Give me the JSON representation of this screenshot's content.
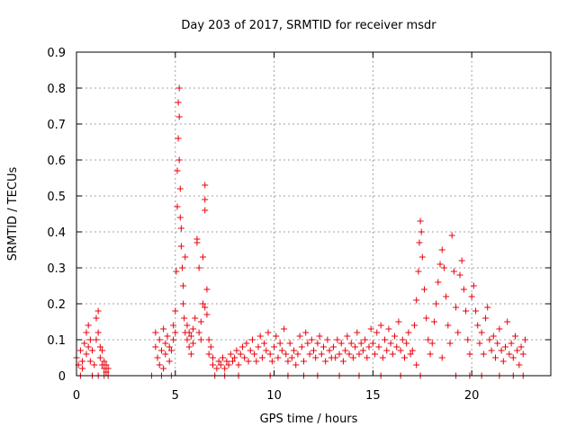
{
  "chart_data": {
    "type": "scatter",
    "title": "Day 203 of 2017, SRMTID for receiver msdr",
    "xlabel": "GPS time / hours",
    "ylabel": "SRMTID / TECUs",
    "xlim": [
      0,
      24
    ],
    "ylim": [
      0,
      0.9
    ],
    "x_ticks": [
      0,
      5,
      10,
      15,
      20
    ],
    "x_tick_labels": [
      "0",
      "5",
      "10",
      "15",
      "20"
    ],
    "y_ticks": [
      0,
      0.1,
      0.2,
      0.3,
      0.4,
      0.5,
      0.6,
      0.7,
      0.8,
      0.9
    ],
    "y_tick_labels": [
      "0",
      "0.1",
      "0.2",
      "0.3",
      "0.4",
      "0.5",
      "0.6",
      "0.7",
      "0.8",
      "0.9"
    ],
    "grid": true,
    "marker": "+",
    "color": "#e8000b",
    "series": [
      {
        "name": "SRMTID",
        "points": [
          [
            0.0,
            0.05
          ],
          [
            0.1,
            0.03
          ],
          [
            0.2,
            0.07
          ],
          [
            0.3,
            0.04
          ],
          [
            0.4,
            0.09
          ],
          [
            0.5,
            0.06
          ],
          [
            0.5,
            0.12
          ],
          [
            0.6,
            0.08
          ],
          [
            0.6,
            0.14
          ],
          [
            0.7,
            0.1
          ],
          [
            0.7,
            0.04
          ],
          [
            0.8,
            0.07
          ],
          [
            0.3,
            0.02
          ],
          [
            0.2,
            0.0
          ],
          [
            0.8,
            0.0
          ],
          [
            0.9,
            0.03
          ],
          [
            1.0,
            0.1
          ],
          [
            1.0,
            0.16
          ],
          [
            1.1,
            0.18
          ],
          [
            1.1,
            0.12
          ],
          [
            1.2,
            0.08
          ],
          [
            1.2,
            0.05
          ],
          [
            1.3,
            0.03
          ],
          [
            1.3,
            0.07
          ],
          [
            1.4,
            0.02
          ],
          [
            1.4,
            0.04
          ],
          [
            1.5,
            0.01
          ],
          [
            1.5,
            0.03
          ],
          [
            1.6,
            0.02
          ],
          [
            1.1,
            0.0
          ],
          [
            1.4,
            0.0
          ],
          [
            1.6,
            0.0
          ],
          [
            3.8,
            0.0
          ],
          [
            4.0,
            0.08
          ],
          [
            4.0,
            0.12
          ],
          [
            4.1,
            0.05
          ],
          [
            4.2,
            0.1
          ],
          [
            4.2,
            0.03
          ],
          [
            4.3,
            0.07
          ],
          [
            4.4,
            0.13
          ],
          [
            4.4,
            0.02
          ],
          [
            4.5,
            0.06
          ],
          [
            4.5,
            0.09
          ],
          [
            4.6,
            0.11
          ],
          [
            4.7,
            0.04
          ],
          [
            4.7,
            0.08
          ],
          [
            4.8,
            0.07
          ],
          [
            4.9,
            0.14
          ],
          [
            4.9,
            0.1
          ],
          [
            4.8,
            0.0
          ],
          [
            4.3,
            0.0
          ],
          [
            5.0,
            0.12
          ],
          [
            5.0,
            0.18
          ],
          [
            5.05,
            0.29
          ],
          [
            5.1,
            0.47
          ],
          [
            5.1,
            0.57
          ],
          [
            5.15,
            0.66
          ],
          [
            5.15,
            0.76
          ],
          [
            5.2,
            0.8
          ],
          [
            5.2,
            0.72
          ],
          [
            5.2,
            0.6
          ],
          [
            5.25,
            0.52
          ],
          [
            5.25,
            0.44
          ],
          [
            5.3,
            0.41
          ],
          [
            5.3,
            0.36
          ],
          [
            5.35,
            0.3
          ],
          [
            5.4,
            0.25
          ],
          [
            5.4,
            0.2
          ],
          [
            5.45,
            0.16
          ],
          [
            5.5,
            0.12
          ],
          [
            5.5,
            0.33
          ],
          [
            5.6,
            0.1
          ],
          [
            5.6,
            0.14
          ],
          [
            5.7,
            0.08
          ],
          [
            5.7,
            0.12
          ],
          [
            5.8,
            0.11
          ],
          [
            5.8,
            0.06
          ],
          [
            5.9,
            0.13
          ],
          [
            5.9,
            0.09
          ],
          [
            6.0,
            0.16
          ],
          [
            6.1,
            0.38
          ],
          [
            6.1,
            0.37
          ],
          [
            6.2,
            0.3
          ],
          [
            6.2,
            0.12
          ],
          [
            6.3,
            0.1
          ],
          [
            6.3,
            0.15
          ],
          [
            6.4,
            0.33
          ],
          [
            6.4,
            0.2
          ],
          [
            6.5,
            0.19
          ],
          [
            6.5,
            0.53
          ],
          [
            6.5,
            0.49
          ],
          [
            6.5,
            0.46
          ],
          [
            6.6,
            0.24
          ],
          [
            6.6,
            0.17
          ],
          [
            6.7,
            0.1
          ],
          [
            6.7,
            0.06
          ],
          [
            6.8,
            0.08
          ],
          [
            6.9,
            0.05
          ],
          [
            6.9,
            0.03
          ],
          [
            7.0,
            0.0
          ],
          [
            7.1,
            0.02
          ],
          [
            7.2,
            0.04
          ],
          [
            7.3,
            0.03
          ],
          [
            7.4,
            0.05
          ],
          [
            7.5,
            0.02
          ],
          [
            7.6,
            0.04
          ],
          [
            7.7,
            0.03
          ],
          [
            7.8,
            0.06
          ],
          [
            7.9,
            0.04
          ],
          [
            8.0,
            0.05
          ],
          [
            8.1,
            0.07
          ],
          [
            8.2,
            0.03
          ],
          [
            8.3,
            0.06
          ],
          [
            8.4,
            0.08
          ],
          [
            8.5,
            0.05
          ],
          [
            8.6,
            0.09
          ],
          [
            8.7,
            0.04
          ],
          [
            8.8,
            0.07
          ],
          [
            8.9,
            0.1
          ],
          [
            7.5,
            0.0
          ],
          [
            8.2,
            0.0
          ],
          [
            9.0,
            0.06
          ],
          [
            9.1,
            0.04
          ],
          [
            9.2,
            0.08
          ],
          [
            9.3,
            0.11
          ],
          [
            9.4,
            0.05
          ],
          [
            9.5,
            0.09
          ],
          [
            9.6,
            0.07
          ],
          [
            9.7,
            0.12
          ],
          [
            9.8,
            0.06
          ],
          [
            9.9,
            0.04
          ],
          [
            10.0,
            0.08
          ],
          [
            10.1,
            0.11
          ],
          [
            10.2,
            0.05
          ],
          [
            10.3,
            0.09
          ],
          [
            10.4,
            0.07
          ],
          [
            10.5,
            0.13
          ],
          [
            10.6,
            0.06
          ],
          [
            10.7,
            0.04
          ],
          [
            10.8,
            0.09
          ],
          [
            10.9,
            0.05
          ],
          [
            9.8,
            0.0
          ],
          [
            10.7,
            0.0
          ],
          [
            11.0,
            0.07
          ],
          [
            11.1,
            0.03
          ],
          [
            11.2,
            0.06
          ],
          [
            11.3,
            0.11
          ],
          [
            11.4,
            0.08
          ],
          [
            11.5,
            0.04
          ],
          [
            11.6,
            0.12
          ],
          [
            11.7,
            0.09
          ],
          [
            11.8,
            0.06
          ],
          [
            11.9,
            0.1
          ],
          [
            12.0,
            0.07
          ],
          [
            12.1,
            0.05
          ],
          [
            12.2,
            0.09
          ],
          [
            12.3,
            0.11
          ],
          [
            12.4,
            0.06
          ],
          [
            12.5,
            0.08
          ],
          [
            12.6,
            0.04
          ],
          [
            12.7,
            0.1
          ],
          [
            12.8,
            0.07
          ],
          [
            12.9,
            0.05
          ],
          [
            11.5,
            0.0
          ],
          [
            12.2,
            0.0
          ],
          [
            13.0,
            0.08
          ],
          [
            13.1,
            0.05
          ],
          [
            13.2,
            0.1
          ],
          [
            13.3,
            0.06
          ],
          [
            13.4,
            0.09
          ],
          [
            13.5,
            0.04
          ],
          [
            13.6,
            0.07
          ],
          [
            13.7,
            0.11
          ],
          [
            13.8,
            0.06
          ],
          [
            13.9,
            0.09
          ],
          [
            14.0,
            0.05
          ],
          [
            14.1,
            0.08
          ],
          [
            14.2,
            0.12
          ],
          [
            14.3,
            0.06
          ],
          [
            14.4,
            0.09
          ],
          [
            14.5,
            0.07
          ],
          [
            14.6,
            0.1
          ],
          [
            14.7,
            0.05
          ],
          [
            14.8,
            0.08
          ],
          [
            14.9,
            0.13
          ],
          [
            13.3,
            0.0
          ],
          [
            14.3,
            0.0
          ],
          [
            15.0,
            0.09
          ],
          [
            15.1,
            0.06
          ],
          [
            15.2,
            0.12
          ],
          [
            15.3,
            0.08
          ],
          [
            15.4,
            0.14
          ],
          [
            15.5,
            0.05
          ],
          [
            15.6,
            0.1
          ],
          [
            15.7,
            0.07
          ],
          [
            15.8,
            0.13
          ],
          [
            15.9,
            0.09
          ],
          [
            16.0,
            0.06
          ],
          [
            16.1,
            0.11
          ],
          [
            16.2,
            0.08
          ],
          [
            16.3,
            0.15
          ],
          [
            16.4,
            0.07
          ],
          [
            16.5,
            0.1
          ],
          [
            16.6,
            0.05
          ],
          [
            16.7,
            0.09
          ],
          [
            16.8,
            0.12
          ],
          [
            16.9,
            0.06
          ],
          [
            15.4,
            0.0
          ],
          [
            16.4,
            0.0
          ],
          [
            17.0,
            0.07
          ],
          [
            17.1,
            0.14
          ],
          [
            17.2,
            0.21
          ],
          [
            17.3,
            0.29
          ],
          [
            17.35,
            0.37
          ],
          [
            17.4,
            0.43
          ],
          [
            17.45,
            0.4
          ],
          [
            17.5,
            0.33
          ],
          [
            17.6,
            0.24
          ],
          [
            17.7,
            0.16
          ],
          [
            17.8,
            0.1
          ],
          [
            17.9,
            0.06
          ],
          [
            17.2,
            0.03
          ],
          [
            17.4,
            0.0
          ],
          [
            18.0,
            0.09
          ],
          [
            18.1,
            0.15
          ],
          [
            18.2,
            0.2
          ],
          [
            18.3,
            0.26
          ],
          [
            18.4,
            0.31
          ],
          [
            18.5,
            0.35
          ],
          [
            18.6,
            0.3
          ],
          [
            18.7,
            0.22
          ],
          [
            18.8,
            0.14
          ],
          [
            18.9,
            0.09
          ],
          [
            19.0,
            0.39
          ],
          [
            19.1,
            0.29
          ],
          [
            19.2,
            0.19
          ],
          [
            19.3,
            0.12
          ],
          [
            19.4,
            0.28
          ],
          [
            19.5,
            0.32
          ],
          [
            19.6,
            0.24
          ],
          [
            19.7,
            0.18
          ],
          [
            19.8,
            0.1
          ],
          [
            19.9,
            0.06
          ],
          [
            18.5,
            0.05
          ],
          [
            19.2,
            0.0
          ],
          [
            19.9,
            0.0
          ],
          [
            20.0,
            0.22
          ],
          [
            20.1,
            0.25
          ],
          [
            20.2,
            0.18
          ],
          [
            20.3,
            0.14
          ],
          [
            20.4,
            0.09
          ],
          [
            20.5,
            0.12
          ],
          [
            20.6,
            0.06
          ],
          [
            20.7,
            0.16
          ],
          [
            20.8,
            0.19
          ],
          [
            20.9,
            0.1
          ],
          [
            21.0,
            0.07
          ],
          [
            21.1,
            0.11
          ],
          [
            21.2,
            0.05
          ],
          [
            21.3,
            0.09
          ],
          [
            21.4,
            0.13
          ],
          [
            21.5,
            0.07
          ],
          [
            21.6,
            0.04
          ],
          [
            21.7,
            0.08
          ],
          [
            21.8,
            0.15
          ],
          [
            21.9,
            0.06
          ],
          [
            20.5,
            0.0
          ],
          [
            21.4,
            0.0
          ],
          [
            22.0,
            0.09
          ],
          [
            22.1,
            0.05
          ],
          [
            22.2,
            0.11
          ],
          [
            22.3,
            0.07
          ],
          [
            22.4,
            0.03
          ],
          [
            22.5,
            0.08
          ],
          [
            22.6,
            0.06
          ],
          [
            22.7,
            0.1
          ],
          [
            22.1,
            0.0
          ],
          [
            22.6,
            0.0
          ]
        ]
      }
    ]
  }
}
